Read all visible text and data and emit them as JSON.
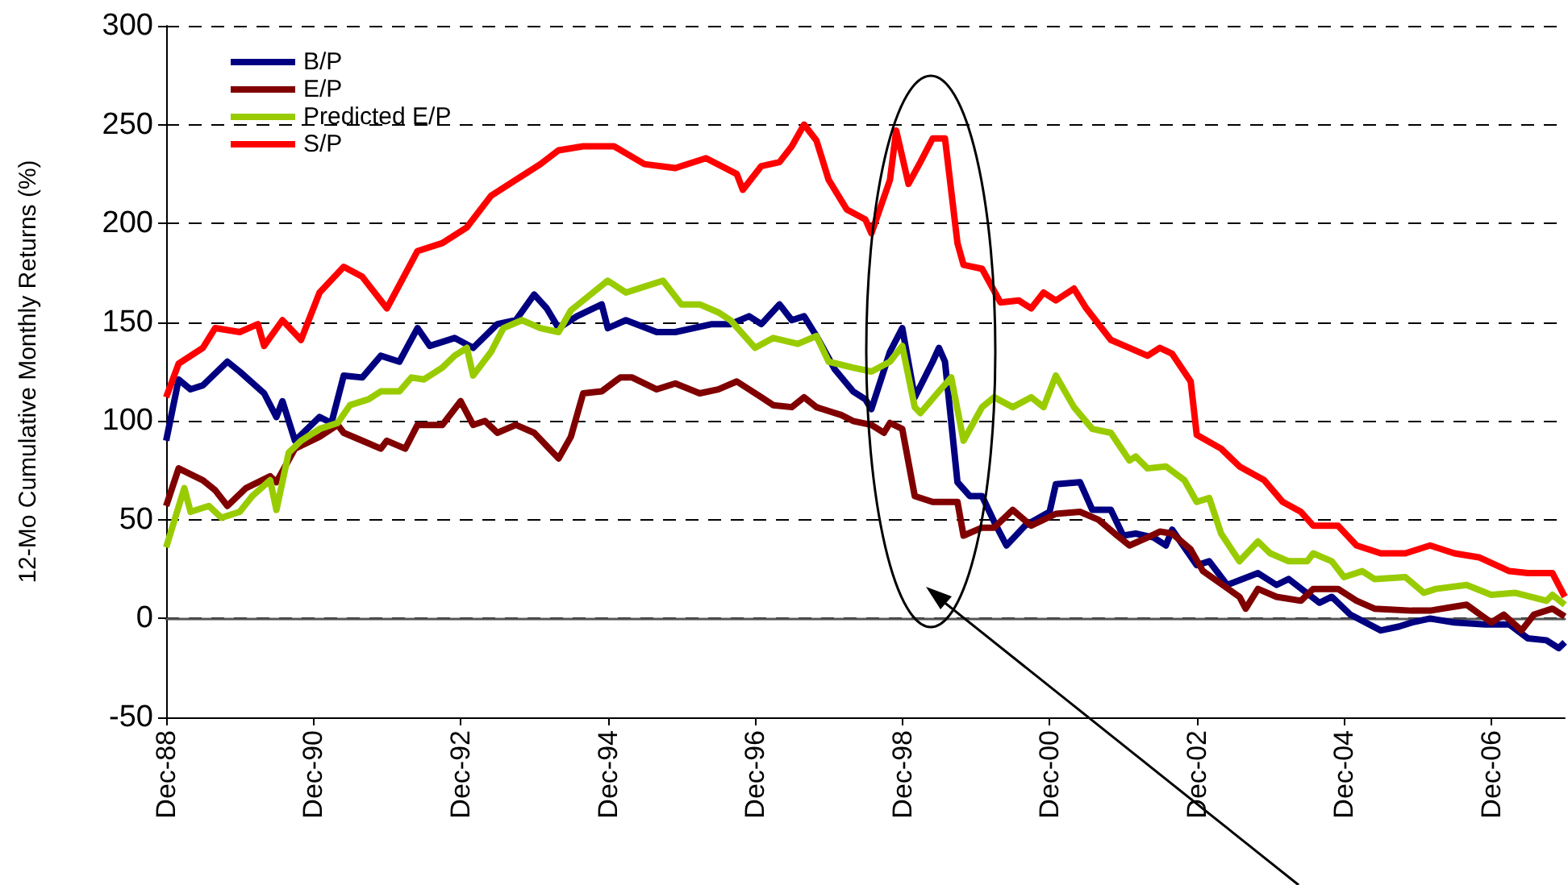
{
  "chart_data": {
    "type": "line",
    "ylabel": "12-Mo Cumulative Monthly Returns (%)",
    "xlim": [
      "1988-12",
      "2007-12"
    ],
    "xticks": [
      {
        "value": "1988-12",
        "label": "Dec-88"
      },
      {
        "value": "1990-12",
        "label": "Dec-90"
      },
      {
        "value": "1992-12",
        "label": "Dec-92"
      },
      {
        "value": "1994-12",
        "label": "Dec-94"
      },
      {
        "value": "1996-12",
        "label": "Dec-96"
      },
      {
        "value": "1998-12",
        "label": "Dec-98"
      },
      {
        "value": "2000-12",
        "label": "Dec-00"
      },
      {
        "value": "2002-12",
        "label": "Dec-02"
      },
      {
        "value": "2004-12",
        "label": "Dec-04"
      },
      {
        "value": "2006-12",
        "label": "Dec-06"
      }
    ],
    "ylim": [
      -50,
      300
    ],
    "yticks": [
      -50,
      0,
      50,
      100,
      150,
      200,
      250,
      300
    ],
    "grid": "y",
    "legend": "top left",
    "series": [
      {
        "name": "B/P",
        "color": "#000080",
        "x": [
          "1988-12",
          "1989-02",
          "1989-04",
          "1989-06",
          "1989-10",
          "1989-12",
          "1990-04",
          "1990-06",
          "1990-07",
          "1990-09",
          "1991-01",
          "1991-03",
          "1991-05",
          "1991-08",
          "1991-11",
          "1992-02",
          "1992-05",
          "1992-07",
          "1992-11",
          "1993-02",
          "1993-06",
          "1993-09",
          "1993-12",
          "1994-02",
          "1994-04",
          "1994-07",
          "1994-11",
          "1994-12",
          "1995-03",
          "1995-08",
          "1995-11",
          "1996-05",
          "1996-08",
          "1996-11",
          "1997-01",
          "1997-04",
          "1997-06",
          "1997-08",
          "1997-10",
          "1998-01",
          "1998-04",
          "1998-06",
          "1998-07",
          "1998-10",
          "1998-12",
          "1999-02",
          "1999-05",
          "1999-06",
          "1999-07",
          "1999-09",
          "1999-11",
          "2000-01",
          "2000-03",
          "2000-05",
          "2000-08",
          "2000-12",
          "2001-01",
          "2001-05",
          "2001-07",
          "2001-10",
          "2001-12",
          "2002-02",
          "2002-05",
          "2002-07",
          "2002-08",
          "2002-12",
          "2003-02",
          "2003-05",
          "2003-10",
          "2004-01",
          "2004-03",
          "2004-08",
          "2004-10",
          "2005-01",
          "2005-06",
          "2005-09",
          "2005-11",
          "2006-02",
          "2006-06",
          "2006-11",
          "2007-03",
          "2007-06",
          "2007-09",
          "2007-11",
          "2007-12"
        ],
        "values": [
          90,
          121,
          116,
          118,
          130,
          125,
          114,
          102,
          110,
          90,
          102,
          99,
          123,
          122,
          133,
          130,
          147,
          138,
          142,
          137,
          149,
          151,
          164,
          157,
          147,
          153,
          159,
          147,
          151,
          145,
          145,
          149,
          149,
          153,
          149,
          159,
          151,
          153,
          143,
          126,
          115,
          111,
          106,
          135,
          147,
          112,
          130,
          137,
          130,
          69,
          62,
          62,
          49,
          37,
          47,
          54,
          68,
          69,
          55,
          55,
          42,
          43,
          41,
          37,
          45,
          27,
          29,
          17,
          23,
          17,
          20,
          8,
          11,
          2,
          -6,
          -4,
          -2,
          0,
          -2,
          -3,
          -3,
          -10,
          -11,
          -15,
          -12
        ]
      },
      {
        "name": "E/P",
        "color": "#800000",
        "x": [
          "1988-12",
          "1989-02",
          "1989-06",
          "1989-08",
          "1989-10",
          "1990-01",
          "1990-05",
          "1990-06",
          "1990-09",
          "1991-01",
          "1991-04",
          "1991-05",
          "1991-08",
          "1991-11",
          "1991-12",
          "1992-03",
          "1992-05",
          "1992-09",
          "1992-12",
          "1993-02",
          "1993-04",
          "1993-06",
          "1993-09",
          "1993-12",
          "1994-04",
          "1994-06",
          "1994-08",
          "1994-11",
          "1995-02",
          "1995-04",
          "1995-08",
          "1995-11",
          "1996-03",
          "1996-06",
          "1996-09",
          "1997-01",
          "1997-03",
          "1997-06",
          "1997-08",
          "1997-10",
          "1998-02",
          "1998-04",
          "1998-07",
          "1998-09",
          "1998-10",
          "1998-12",
          "1999-02",
          "1999-05",
          "1999-09",
          "1999-10",
          "2000-01",
          "2000-03",
          "2000-06",
          "2000-09",
          "2001-01",
          "2001-05",
          "2001-08",
          "2001-11",
          "2002-01",
          "2002-04",
          "2002-06",
          "2002-08",
          "2002-11",
          "2003-01",
          "2003-07",
          "2003-08",
          "2003-10",
          "2004-01",
          "2004-05",
          "2004-07",
          "2004-11",
          "2005-02",
          "2005-05",
          "2005-11",
          "2006-02",
          "2006-08",
          "2006-12",
          "2007-02",
          "2007-05",
          "2007-07",
          "2007-10",
          "2007-12"
        ],
        "values": [
          57,
          76,
          70,
          65,
          57,
          66,
          72,
          69,
          86,
          92,
          98,
          94,
          90,
          86,
          90,
          86,
          98,
          98,
          110,
          98,
          100,
          94,
          98,
          94,
          81,
          92,
          114,
          115,
          122,
          122,
          116,
          119,
          114,
          116,
          120,
          112,
          108,
          107,
          112,
          107,
          103,
          100,
          98,
          94,
          99,
          96,
          62,
          59,
          59,
          42,
          46,
          46,
          55,
          47,
          53,
          54,
          50,
          42,
          37,
          41,
          44,
          43,
          35,
          24,
          11,
          5,
          15,
          11,
          9,
          15,
          15,
          9,
          5,
          4,
          4,
          7,
          -2,
          2,
          -6,
          2,
          5,
          1
        ]
      },
      {
        "name": "Predicted E/P",
        "color": "#99cc00",
        "x": [
          "1988-12",
          "1989-03",
          "1989-04",
          "1989-07",
          "1989-09",
          "1989-12",
          "1990-02",
          "1990-05",
          "1990-06",
          "1990-08",
          "1990-10",
          "1991-01",
          "1991-04",
          "1991-06",
          "1991-09",
          "1991-11",
          "1992-02",
          "1992-04",
          "1992-06",
          "1992-09",
          "1992-11",
          "1993-01",
          "1993-02",
          "1993-05",
          "1993-07",
          "1993-10",
          "1994-01",
          "1994-04",
          "1994-06",
          "1994-08",
          "1994-12",
          "1995-03",
          "1995-06",
          "1995-09",
          "1995-12",
          "1996-03",
          "1996-06",
          "1996-08",
          "1996-12",
          "1997-03",
          "1997-07",
          "1997-10",
          "1997-12",
          "1998-04",
          "1998-07",
          "1998-10",
          "1998-12",
          "1999-02",
          "1999-03",
          "1999-06",
          "1999-08",
          "1999-10",
          "2000-01",
          "2000-03",
          "2000-06",
          "2000-09",
          "2000-11",
          "2001-01",
          "2001-04",
          "2001-07",
          "2001-10",
          "2002-01",
          "2002-02",
          "2002-04",
          "2002-07",
          "2002-10",
          "2002-12",
          "2003-02",
          "2003-04",
          "2003-07",
          "2003-10",
          "2003-12",
          "2004-03",
          "2004-06",
          "2004-07",
          "2004-10",
          "2004-12",
          "2005-03",
          "2005-05",
          "2005-10",
          "2006-01",
          "2006-03",
          "2006-08",
          "2006-12",
          "2007-04",
          "2007-09",
          "2007-10",
          "2007-12"
        ],
        "values": [
          36,
          66,
          54,
          57,
          51,
          54,
          62,
          70,
          55,
          84,
          90,
          96,
          99,
          108,
          111,
          115,
          115,
          122,
          121,
          127,
          133,
          137,
          123,
          135,
          147,
          151,
          147,
          145,
          156,
          161,
          171,
          165,
          168,
          171,
          159,
          159,
          155,
          151,
          137,
          142,
          139,
          143,
          130,
          127,
          125,
          130,
          138,
          107,
          104,
          115,
          122,
          90,
          107,
          112,
          107,
          112,
          107,
          123,
          107,
          96,
          94,
          80,
          82,
          76,
          77,
          70,
          59,
          61,
          43,
          29,
          39,
          33,
          29,
          29,
          33,
          29,
          21,
          24,
          20,
          21,
          13,
          15,
          17,
          12,
          13,
          9,
          12,
          7
        ]
      },
      {
        "name": "S/P",
        "color": "#ff0000",
        "x": [
          "1988-12",
          "1989-02",
          "1989-06",
          "1989-08",
          "1989-12",
          "1990-03",
          "1990-04",
          "1990-07",
          "1990-10",
          "1991-01",
          "1991-05",
          "1991-08",
          "1991-12",
          "1992-05",
          "1992-09",
          "1993-01",
          "1993-05",
          "1993-09",
          "1994-01",
          "1994-04",
          "1994-08",
          "1995-01",
          "1995-06",
          "1995-11",
          "1996-04",
          "1996-09",
          "1996-10",
          "1997-01",
          "1997-04",
          "1997-06",
          "1997-08",
          "1997-10",
          "1997-12",
          "1998-03",
          "1998-06",
          "1998-07",
          "1998-10",
          "1998-11",
          "1999-01",
          "1999-03",
          "1999-05",
          "1999-07",
          "1999-09",
          "1999-10",
          "2000-01",
          "2000-04",
          "2000-07",
          "2000-09",
          "2000-11",
          "2001-01",
          "2001-04",
          "2001-06",
          "2001-10",
          "2002-01",
          "2002-04",
          "2002-06",
          "2002-08",
          "2002-11",
          "2002-12",
          "2003-04",
          "2003-07",
          "2003-11",
          "2004-02",
          "2004-05",
          "2004-07",
          "2004-11",
          "2005-02",
          "2005-06",
          "2005-10",
          "2006-02",
          "2006-06",
          "2006-10",
          "2007-03",
          "2007-06",
          "2007-10",
          "2007-12"
        ],
        "values": [
          112,
          129,
          137,
          147,
          145,
          149,
          138,
          151,
          141,
          165,
          178,
          173,
          157,
          186,
          190,
          198,
          214,
          222,
          230,
          237,
          239,
          239,
          230,
          228,
          233,
          225,
          217,
          229,
          231,
          239,
          250,
          242,
          222,
          207,
          202,
          195,
          222,
          247,
          220,
          231,
          243,
          243,
          190,
          179,
          177,
          160,
          161,
          157,
          165,
          161,
          167,
          157,
          141,
          137,
          133,
          137,
          134,
          120,
          93,
          86,
          77,
          70,
          59,
          54,
          47,
          47,
          37,
          33,
          33,
          37,
          33,
          31,
          24,
          23,
          23,
          11
        ]
      }
    ]
  }
}
